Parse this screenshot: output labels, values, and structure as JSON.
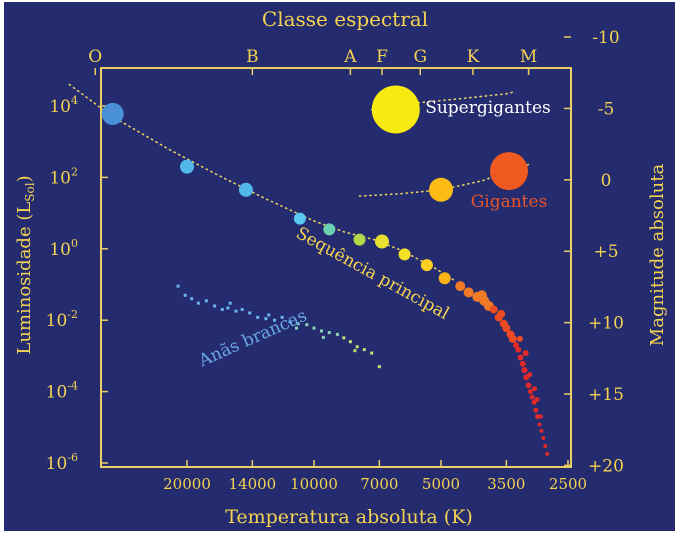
{
  "colors": {
    "background": "#242b6e",
    "axis": "#e9cf63",
    "label_text": "#f4d352",
    "white_dwarf_label": "#6aa8e0",
    "supergiant_label": "#ffffff",
    "giant_label": "#e8552a",
    "main_sequence_label": "#f4d352"
  },
  "chart_data": {
    "type": "scatter",
    "title": "Classe espectral",
    "xlabel": "Temperatura absoluta (K)",
    "ylabel": "Luminosidade (L",
    "ylabel_sub": "Sol",
    "ylabel_close": ")",
    "y2label": "Magnitude absoluta",
    "x_scale": "log (reversed)",
    "y_scale": "log",
    "xlim": [
      40000,
      2500
    ],
    "ylim": [
      1e-06,
      100000.0
    ],
    "x_ticks": [
      "20000",
      "14000",
      "10000",
      "7000",
      "5000",
      "3500",
      "2500"
    ],
    "x_tick_values": [
      20000,
      14000,
      10000,
      7000,
      5000,
      3500,
      2500
    ],
    "y_ticks": [
      {
        "base": "10",
        "exp": "4"
      },
      {
        "base": "10",
        "exp": "2"
      },
      {
        "base": "10",
        "exp": "0"
      },
      {
        "base": "10",
        "exp": "-2"
      },
      {
        "base": "10",
        "exp": "-4"
      },
      {
        "base": "10",
        "exp": "-6"
      }
    ],
    "y_tick_values": [
      10000.0,
      100.0,
      1.0,
      0.01,
      0.0001,
      1e-06
    ],
    "magnitude_ticks": [
      "-10",
      "-5",
      "0",
      "+5",
      "+10",
      "+15",
      "+20"
    ],
    "magnitude_values": [
      -10,
      -5,
      0,
      5,
      10,
      15,
      20
    ],
    "spectral_classes": [
      "O",
      "B",
      "A",
      "F",
      "G",
      "K",
      "M"
    ],
    "spectral_temps": [
      33000,
      14000,
      8200,
      6900,
      5600,
      4200,
      3100
    ],
    "region_labels": {
      "supergiants": "Supergigantes",
      "giants": "Gigantes",
      "main_sequence": "Sequência principal",
      "white_dwarfs": "Anãs brancas"
    },
    "main_sequence_stars": [
      {
        "t": 30000,
        "l": 6000,
        "color": "#4a90d9",
        "r": 11
      },
      {
        "t": 20000,
        "l": 200,
        "color": "#52b8ec",
        "r": 7
      },
      {
        "t": 14500,
        "l": 45,
        "color": "#52b8ec",
        "r": 7
      },
      {
        "t": 10800,
        "l": 7,
        "color": "#5ac8f0",
        "r": 6
      },
      {
        "t": 9200,
        "l": 3.5,
        "color": "#6ad0b0",
        "r": 6
      },
      {
        "t": 7800,
        "l": 1.8,
        "color": "#b4d84a",
        "r": 6
      },
      {
        "t": 6900,
        "l": 1.6,
        "color": "#e8e030",
        "r": 7
      },
      {
        "t": 6100,
        "l": 0.7,
        "color": "#f6e02a",
        "r": 6
      },
      {
        "t": 5400,
        "l": 0.35,
        "color": "#fcd020",
        "r": 6
      },
      {
        "t": 4900,
        "l": 0.15,
        "color": "#fcb418",
        "r": 6
      }
    ],
    "supergiants": [
      {
        "t": 6400,
        "l": 8000,
        "color": "#f6ea10",
        "r": 24
      }
    ],
    "giants": [
      {
        "t": 5000,
        "l": 45,
        "color": "#fcbc14",
        "r": 12
      },
      {
        "t": 3450,
        "l": 150,
        "color": "#f05a20",
        "r": 19
      }
    ],
    "white_dwarfs": [
      {
        "t": 21000,
        "l": 0.09
      },
      {
        "t": 20200,
        "l": 0.05
      },
      {
        "t": 19500,
        "l": 0.04
      },
      {
        "t": 18800,
        "l": 0.03
      },
      {
        "t": 18000,
        "l": 0.035
      },
      {
        "t": 17200,
        "l": 0.025
      },
      {
        "t": 16500,
        "l": 0.02
      },
      {
        "t": 16000,
        "l": 0.022
      },
      {
        "t": 15300,
        "l": 0.018
      },
      {
        "t": 14800,
        "l": 0.02
      },
      {
        "t": 14200,
        "l": 0.016
      },
      {
        "t": 13600,
        "l": 0.012
      },
      {
        "t": 13000,
        "l": 0.011
      },
      {
        "t": 12400,
        "l": 0.01
      },
      {
        "t": 11900,
        "l": 0.012
      },
      {
        "t": 11400,
        "l": 0.009
      },
      {
        "t": 10900,
        "l": 0.008
      },
      {
        "t": 10400,
        "l": 0.0075
      },
      {
        "t": 10000,
        "l": 0.006
      },
      {
        "t": 9600,
        "l": 0.005
      },
      {
        "t": 9200,
        "l": 0.0045
      },
      {
        "t": 8800,
        "l": 0.004
      },
      {
        "t": 8500,
        "l": 0.0032
      },
      {
        "t": 8200,
        "l": 0.0025
      },
      {
        "t": 7900,
        "l": 0.0018
      },
      {
        "t": 7600,
        "l": 0.0015
      },
      {
        "t": 7300,
        "l": 0.0012
      },
      {
        "t": 8000,
        "l": 0.0014
      },
      {
        "t": 7000,
        "l": 0.0005
      },
      {
        "t": 11000,
        "l": 0.006
      },
      {
        "t": 12800,
        "l": 0.014
      },
      {
        "t": 15800,
        "l": 0.03
      },
      {
        "t": 9500,
        "l": 0.0033
      }
    ],
    "red_dwarfs": [
      {
        "t": 4500,
        "l": 0.09,
        "r": 5
      },
      {
        "t": 4300,
        "l": 0.06,
        "r": 5
      },
      {
        "t": 4100,
        "l": 0.045,
        "r": 5
      },
      {
        "t": 3950,
        "l": 0.035,
        "r": 5
      },
      {
        "t": 3850,
        "l": 0.025,
        "r": 5
      },
      {
        "t": 3750,
        "l": 0.02,
        "r": 4
      },
      {
        "t": 3650,
        "l": 0.012,
        "r": 4
      },
      {
        "t": 3550,
        "l": 0.008,
        "r": 4
      },
      {
        "t": 3500,
        "l": 0.006,
        "r": 4
      },
      {
        "t": 3420,
        "l": 0.004,
        "r": 4
      },
      {
        "t": 3380,
        "l": 0.003,
        "r": 4
      },
      {
        "t": 3320,
        "l": 0.002,
        "r": 3
      },
      {
        "t": 3280,
        "l": 0.0015,
        "r": 3
      },
      {
        "t": 3240,
        "l": 0.0009,
        "r": 3
      },
      {
        "t": 3200,
        "l": 0.0006,
        "r": 3
      },
      {
        "t": 3170,
        "l": 0.0004,
        "r": 3
      },
      {
        "t": 3140,
        "l": 0.00025,
        "r": 3
      },
      {
        "t": 3100,
        "l": 0.00015,
        "r": 3
      },
      {
        "t": 3070,
        "l": 0.0001,
        "r": 2.5
      },
      {
        "t": 3040,
        "l": 7e-05,
        "r": 2.5
      },
      {
        "t": 3010,
        "l": 5e-05,
        "r": 2.5
      },
      {
        "t": 2980,
        "l": 3e-05,
        "r": 2.5
      },
      {
        "t": 2950,
        "l": 2e-05,
        "r": 2.5
      },
      {
        "t": 2920,
        "l": 1.2e-05,
        "r": 2
      },
      {
        "t": 2890,
        "l": 8e-06,
        "r": 2
      },
      {
        "t": 2860,
        "l": 5e-06,
        "r": 2
      },
      {
        "t": 2830,
        "l": 3e-06,
        "r": 2
      },
      {
        "t": 2800,
        "l": 1.8e-06,
        "r": 2
      },
      {
        "t": 3000,
        "l": 0.00012,
        "r": 2.5
      },
      {
        "t": 3150,
        "l": 0.0012,
        "r": 3
      },
      {
        "t": 3080,
        "l": 0.0003,
        "r": 2.5
      },
      {
        "t": 2960,
        "l": 6e-05,
        "r": 2.5
      },
      {
        "t": 2900,
        "l": 2e-05,
        "r": 2
      },
      {
        "t": 3250,
        "l": 0.003,
        "r": 3
      },
      {
        "t": 3600,
        "l": 0.015,
        "r": 4
      },
      {
        "t": 4000,
        "l": 0.05,
        "r": 5
      }
    ]
  }
}
